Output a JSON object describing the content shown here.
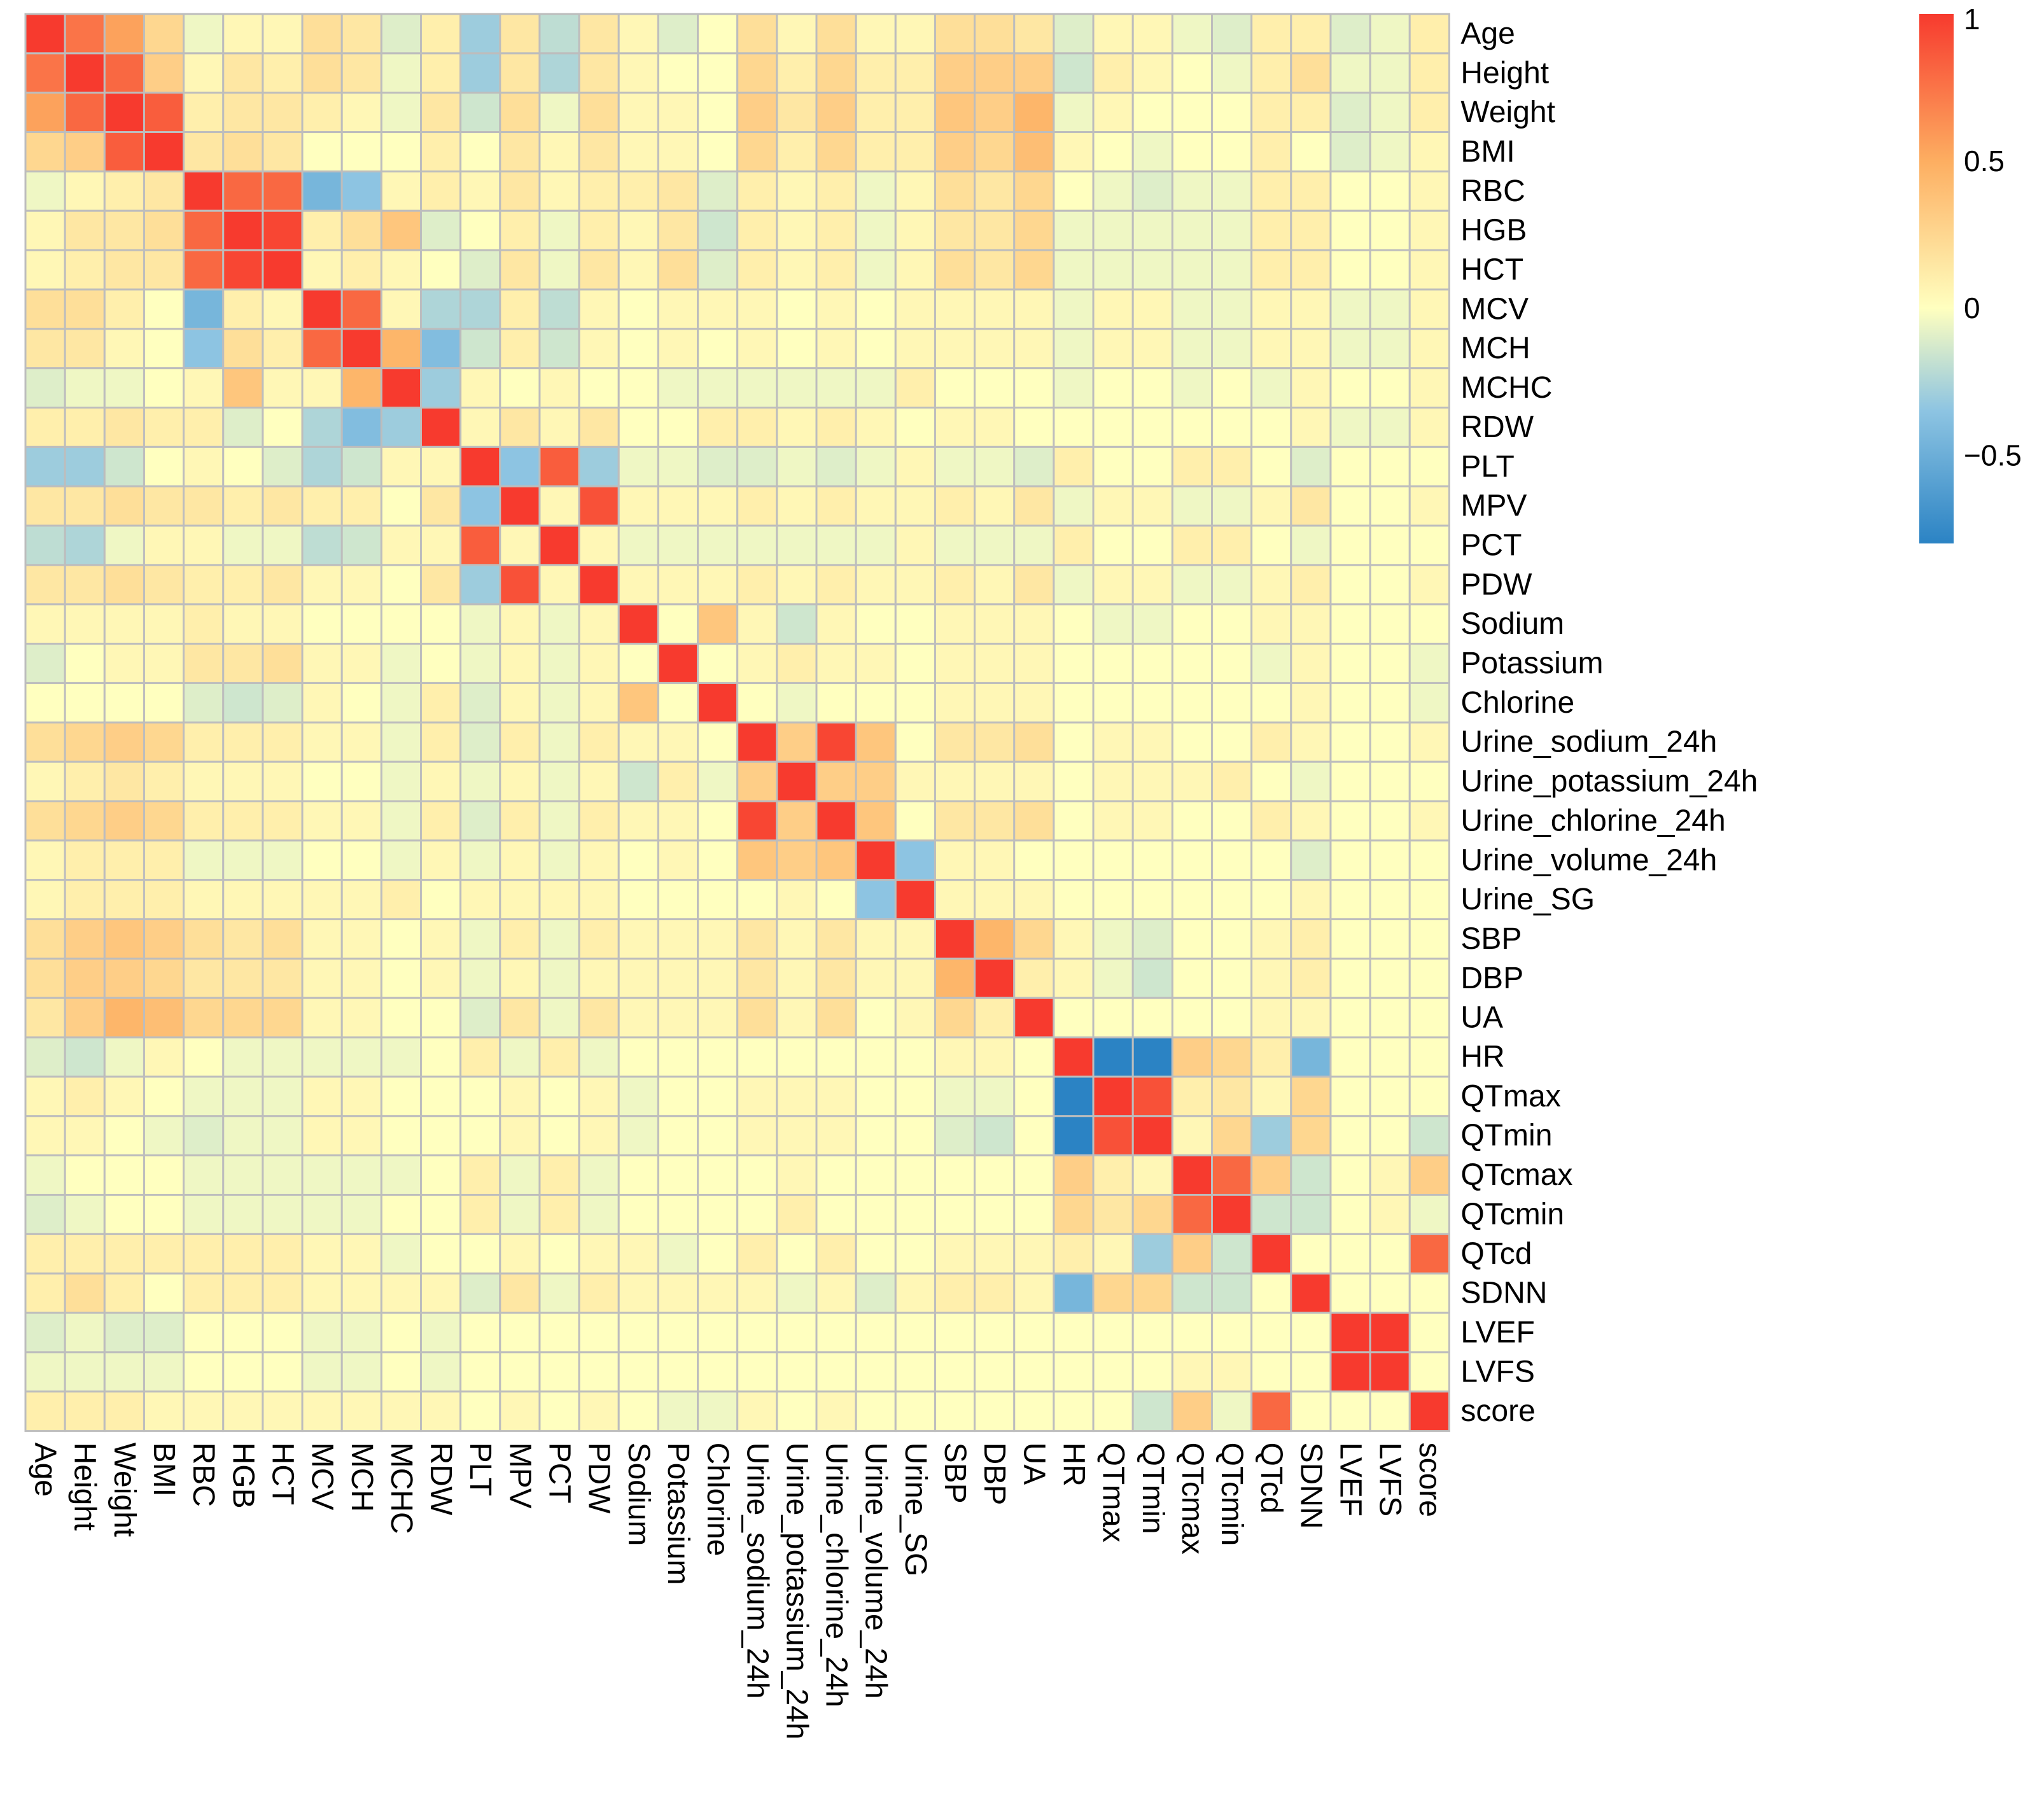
{
  "chart_data": {
    "type": "heatmap",
    "title": "",
    "variables": [
      "Age",
      "Height",
      "Weight",
      "BMI",
      "RBC",
      "HGB",
      "HCT",
      "MCV",
      "MCH",
      "MCHC",
      "RDW",
      "PLT",
      "MPV",
      "PCT",
      "PDW",
      "Sodium",
      "Potassium",
      "Chlorine",
      "Urine_sodium_24h",
      "Urine_potassium_24h",
      "Urine_chlorine_24h",
      "Urine_volume_24h",
      "Urine_SG",
      "SBP",
      "DBP",
      "UA",
      "HR",
      "QTmax",
      "QTmin",
      "QTcmax",
      "QTcmin",
      "QTcd",
      "SDNN",
      "LVEF",
      "LVFS",
      "score"
    ],
    "matrix": [
      [
        1,
        0.75,
        0.55,
        0.25,
        -0.05,
        0.05,
        0.05,
        0.2,
        0.15,
        -0.1,
        0.1,
        -0.3,
        0.15,
        -0.2,
        0.15,
        0.05,
        -0.1,
        0,
        0.2,
        0.05,
        0.2,
        0.05,
        0.05,
        0.2,
        0.2,
        0.15,
        -0.1,
        0.05,
        0.05,
        -0.05,
        -0.1,
        0.1,
        0.1,
        -0.1,
        -0.05,
        0.1
      ],
      [
        0.75,
        1,
        0.8,
        0.3,
        0.05,
        0.15,
        0.1,
        0.2,
        0.15,
        -0.05,
        0.1,
        -0.3,
        0.15,
        -0.25,
        0.15,
        0.05,
        0,
        0,
        0.25,
        0.1,
        0.25,
        0.1,
        0.1,
        0.3,
        0.3,
        0.3,
        -0.15,
        0.1,
        0.05,
        0,
        -0.05,
        0.1,
        0.2,
        -0.05,
        -0.05,
        0.1
      ],
      [
        0.55,
        0.8,
        1,
        0.85,
        0.1,
        0.15,
        0.15,
        0.1,
        0.05,
        -0.05,
        0.15,
        -0.15,
        0.2,
        -0.05,
        0.2,
        0.05,
        0.05,
        0,
        0.3,
        0.15,
        0.3,
        0.1,
        0.1,
        0.35,
        0.3,
        0.45,
        -0.05,
        0.05,
        0,
        0,
        0,
        0.1,
        0.1,
        -0.1,
        -0.05,
        0.1
      ],
      [
        0.25,
        0.3,
        0.85,
        1,
        0.15,
        0.2,
        0.15,
        0,
        0,
        0,
        0.1,
        0,
        0.15,
        0.05,
        0.15,
        0.05,
        0.05,
        0,
        0.25,
        0.1,
        0.25,
        0.1,
        0.1,
        0.3,
        0.25,
        0.4,
        0.05,
        0,
        -0.05,
        0,
        0,
        0.1,
        0,
        -0.1,
        -0.05,
        0.05
      ],
      [
        -0.05,
        0.05,
        0.1,
        0.15,
        1,
        0.8,
        0.8,
        -0.45,
        -0.35,
        0.05,
        0.1,
        0.05,
        0.15,
        0.05,
        0.1,
        0.1,
        0.15,
        -0.1,
        0.1,
        0.05,
        0.1,
        -0.05,
        0.05,
        0.2,
        0.15,
        0.25,
        0,
        -0.05,
        -0.1,
        -0.05,
        -0.05,
        0.1,
        0.1,
        0,
        0,
        0.05
      ],
      [
        0.05,
        0.15,
        0.15,
        0.2,
        0.8,
        1,
        0.95,
        0.1,
        0.2,
        0.35,
        -0.1,
        0,
        0.1,
        -0.05,
        0.1,
        0.05,
        0.15,
        -0.15,
        0.1,
        0.05,
        0.1,
        -0.05,
        0.05,
        0.15,
        0.15,
        0.25,
        -0.05,
        -0.05,
        -0.05,
        -0.05,
        -0.05,
        0.1,
        0.1,
        0,
        0,
        0.05
      ],
      [
        0.05,
        0.1,
        0.15,
        0.15,
        0.8,
        0.95,
        1,
        0.05,
        0.1,
        0.05,
        0,
        -0.1,
        0.15,
        -0.05,
        0.15,
        0.05,
        0.2,
        -0.1,
        0.1,
        0.05,
        0.1,
        -0.05,
        0.05,
        0.2,
        0.15,
        0.25,
        -0.05,
        -0.05,
        -0.05,
        -0.05,
        -0.05,
        0.1,
        0.1,
        0,
        0,
        0.05
      ],
      [
        0.2,
        0.2,
        0.1,
        0,
        -0.45,
        0.1,
        0.05,
        1,
        0.8,
        0.05,
        -0.25,
        -0.25,
        0.1,
        -0.2,
        0.05,
        0,
        0.05,
        0.05,
        0.05,
        0,
        0.05,
        0,
        0.05,
        0.05,
        0.05,
        0.05,
        -0.05,
        0.05,
        0.05,
        -0.05,
        -0.05,
        0.05,
        0.05,
        -0.05,
        -0.05,
        0.05
      ],
      [
        0.15,
        0.15,
        0.05,
        0,
        -0.35,
        0.2,
        0.1,
        0.8,
        1,
        0.45,
        -0.4,
        -0.15,
        0.1,
        -0.15,
        0.05,
        0,
        0.05,
        0,
        0.05,
        0,
        0.05,
        0,
        0.05,
        0.05,
        0.05,
        0.05,
        -0.05,
        0.05,
        0.05,
        -0.05,
        -0.05,
        0.05,
        0.05,
        -0.05,
        -0.05,
        0.05
      ],
      [
        -0.1,
        -0.05,
        -0.05,
        0,
        0.05,
        0.35,
        0.05,
        0.05,
        0.45,
        1,
        -0.3,
        0.05,
        0,
        0.05,
        0,
        0,
        -0.05,
        -0.05,
        -0.05,
        -0.05,
        -0.05,
        -0.05,
        0.1,
        0,
        0,
        0,
        -0.05,
        0,
        0,
        -0.05,
        0,
        -0.05,
        0.05,
        0,
        0,
        0.05
      ],
      [
        0.1,
        0.1,
        0.15,
        0.1,
        0.1,
        -0.1,
        0,
        -0.25,
        -0.4,
        -0.3,
        1,
        0.05,
        0.15,
        0.05,
        0.15,
        0,
        0,
        0.1,
        0.1,
        0.05,
        0.1,
        0.05,
        0,
        0.05,
        0.05,
        0,
        0,
        0,
        0,
        0,
        0,
        0,
        0.05,
        -0.05,
        -0.05,
        0.05
      ],
      [
        -0.3,
        -0.3,
        -0.15,
        0,
        0.05,
        0,
        -0.1,
        -0.25,
        -0.15,
        0.05,
        0.05,
        1,
        -0.35,
        0.85,
        -0.3,
        -0.05,
        -0.05,
        -0.1,
        -0.1,
        -0.05,
        -0.1,
        -0.05,
        0.05,
        -0.05,
        -0.05,
        -0.1,
        0.1,
        0,
        0,
        0.1,
        0.1,
        0,
        -0.1,
        0,
        0,
        0
      ],
      [
        0.15,
        0.15,
        0.2,
        0.15,
        0.15,
        0.1,
        0.15,
        0.1,
        0.1,
        0,
        0.15,
        -0.35,
        1,
        0.05,
        0.9,
        0.05,
        0.05,
        0.05,
        0.1,
        0.05,
        0.1,
        0.05,
        0.05,
        0.1,
        0.05,
        0.15,
        -0.05,
        0.05,
        0.05,
        -0.05,
        -0.05,
        0.05,
        0.15,
        0,
        0,
        0.05
      ],
      [
        -0.2,
        -0.25,
        -0.05,
        0.05,
        0.05,
        -0.05,
        -0.05,
        -0.2,
        -0.15,
        0.05,
        0.05,
        0.85,
        0.05,
        1,
        0.05,
        -0.05,
        -0.05,
        -0.05,
        -0.05,
        -0.05,
        -0.05,
        -0.05,
        0.05,
        -0.05,
        -0.05,
        -0.05,
        0.1,
        0,
        0,
        0.1,
        0.1,
        0,
        -0.05,
        0,
        0,
        0
      ],
      [
        0.15,
        0.15,
        0.2,
        0.15,
        0.1,
        0.1,
        0.15,
        0.05,
        0.05,
        0,
        0.15,
        -0.3,
        0.9,
        0.05,
        1,
        0.05,
        0.05,
        0.05,
        0.1,
        0.05,
        0.1,
        0.05,
        0.05,
        0.1,
        0.05,
        0.15,
        -0.05,
        0.05,
        0.05,
        -0.05,
        -0.05,
        0.05,
        0.1,
        0,
        0,
        0.05
      ],
      [
        0.05,
        0.05,
        0.05,
        0.05,
        0.1,
        0.05,
        0.05,
        0,
        0,
        0,
        0,
        -0.05,
        0.05,
        -0.05,
        0.05,
        1,
        0,
        0.35,
        0.05,
        -0.15,
        0.05,
        0,
        0,
        0.05,
        0.05,
        0.05,
        0,
        -0.05,
        -0.05,
        0,
        0,
        0.05,
        0.05,
        0,
        0,
        0
      ],
      [
        -0.1,
        0,
        0.05,
        0.05,
        0.15,
        0.15,
        0.2,
        0.05,
        0.05,
        -0.05,
        0,
        -0.05,
        0.05,
        -0.05,
        0.05,
        0,
        1,
        0,
        0.05,
        0.1,
        0.05,
        0.05,
        0,
        0.05,
        0.05,
        0.05,
        0,
        0,
        0,
        0,
        0,
        -0.05,
        0.05,
        0,
        0,
        -0.05
      ],
      [
        0,
        0,
        0,
        0,
        -0.1,
        -0.15,
        -0.1,
        0.05,
        0,
        -0.05,
        0.1,
        -0.1,
        0.05,
        -0.05,
        0.05,
        0.35,
        0,
        1,
        0,
        -0.05,
        0,
        0,
        0,
        0.05,
        0.05,
        0.05,
        0,
        0,
        0,
        0,
        0,
        0,
        0.05,
        0,
        0,
        -0.05
      ],
      [
        0.2,
        0.25,
        0.3,
        0.25,
        0.1,
        0.1,
        0.1,
        0.05,
        0.05,
        -0.05,
        0.1,
        -0.1,
        0.1,
        -0.05,
        0.1,
        0.05,
        0.05,
        0,
        1,
        0.3,
        0.95,
        0.35,
        0,
        0.15,
        0.15,
        0.2,
        0,
        0.05,
        0.05,
        0,
        0,
        0.1,
        0.05,
        0,
        0,
        0.05
      ],
      [
        0.05,
        0.1,
        0.15,
        0.1,
        0.05,
        0.05,
        0.05,
        0,
        0,
        -0.05,
        0.05,
        -0.05,
        0.05,
        -0.05,
        0.05,
        -0.15,
        0.1,
        -0.05,
        0.3,
        1,
        0.3,
        0.3,
        0.05,
        0.05,
        0.05,
        0.05,
        0,
        0.05,
        0.05,
        0.05,
        0.1,
        0,
        -0.05,
        0,
        0,
        0
      ],
      [
        0.2,
        0.25,
        0.3,
        0.25,
        0.1,
        0.1,
        0.1,
        0.05,
        0.05,
        -0.05,
        0.1,
        -0.1,
        0.1,
        -0.05,
        0.1,
        0.05,
        0.05,
        0,
        0.95,
        0.3,
        1,
        0.35,
        0,
        0.15,
        0.15,
        0.2,
        0,
        0.05,
        0.05,
        0,
        0,
        0.1,
        0.05,
        0,
        0,
        0.05
      ],
      [
        0.05,
        0.1,
        0.1,
        0.1,
        -0.05,
        -0.05,
        -0.05,
        0,
        0,
        -0.05,
        0.05,
        -0.05,
        0.05,
        -0.05,
        0.05,
        0,
        0.05,
        0,
        0.35,
        0.3,
        0.35,
        1,
        -0.35,
        0.05,
        0.05,
        0,
        0,
        0,
        0,
        0,
        0,
        0,
        -0.1,
        0,
        0,
        0
      ],
      [
        0.05,
        0.1,
        0.1,
        0.1,
        0.05,
        0.05,
        0.05,
        0.05,
        0.05,
        0.1,
        0,
        0.05,
        0.05,
        0.05,
        0.05,
        0,
        0,
        0,
        0,
        0.05,
        0,
        -0.35,
        1,
        0.05,
        0.05,
        0.05,
        0,
        0,
        0,
        0,
        0,
        0,
        0.05,
        0,
        0,
        0
      ],
      [
        0.2,
        0.3,
        0.35,
        0.3,
        0.2,
        0.15,
        0.2,
        0.05,
        0.05,
        0,
        0.05,
        -0.05,
        0.1,
        -0.05,
        0.1,
        0.05,
        0.05,
        0.05,
        0.15,
        0.05,
        0.15,
        0.05,
        0.05,
        1,
        0.45,
        0.25,
        0.05,
        -0.05,
        -0.1,
        0,
        0,
        0.05,
        0.1,
        0,
        0,
        0
      ],
      [
        0.2,
        0.3,
        0.3,
        0.25,
        0.15,
        0.15,
        0.15,
        0.05,
        0.05,
        0,
        0.05,
        -0.05,
        0.05,
        -0.05,
        0.05,
        0.05,
        0.05,
        0.05,
        0.15,
        0.05,
        0.15,
        0.05,
        0.05,
        0.45,
        1,
        0.1,
        0.05,
        -0.05,
        -0.15,
        0,
        0,
        0.05,
        0.1,
        0,
        0,
        0
      ],
      [
        0.15,
        0.3,
        0.45,
        0.4,
        0.25,
        0.25,
        0.25,
        0.05,
        0.05,
        0,
        0,
        -0.1,
        0.15,
        -0.05,
        0.15,
        0.05,
        0.05,
        0.05,
        0.2,
        0.05,
        0.2,
        0,
        0.05,
        0.25,
        0.1,
        1,
        0,
        0,
        0,
        0,
        0,
        0.05,
        0.05,
        0,
        0,
        0
      ],
      [
        -0.1,
        -0.15,
        -0.05,
        0.05,
        0,
        -0.05,
        -0.05,
        -0.05,
        -0.05,
        -0.05,
        0,
        0.1,
        -0.05,
        0.1,
        -0.05,
        0,
        0,
        0,
        0,
        0,
        0,
        0,
        0,
        0.05,
        0.05,
        0,
        1,
        -0.85,
        -0.85,
        0.3,
        0.25,
        0.1,
        -0.45,
        0,
        0,
        0
      ],
      [
        0.05,
        0.1,
        0.05,
        0,
        -0.05,
        -0.05,
        -0.05,
        0.05,
        0.05,
        0,
        0,
        0,
        0.05,
        0,
        0.05,
        -0.05,
        0,
        0,
        0.05,
        0.05,
        0.05,
        0,
        0,
        -0.05,
        -0.05,
        0,
        -0.85,
        1,
        0.9,
        0.1,
        0.15,
        0.05,
        0.25,
        0,
        0,
        0
      ],
      [
        0.05,
        0.05,
        0,
        -0.05,
        -0.1,
        -0.05,
        -0.05,
        0.05,
        0.05,
        0,
        0,
        0,
        0.05,
        0,
        0.05,
        -0.05,
        0,
        0,
        0.05,
        0.05,
        0.05,
        0,
        0,
        -0.1,
        -0.15,
        0,
        -0.85,
        0.9,
        1,
        0.05,
        0.25,
        -0.3,
        0.25,
        0,
        0,
        -0.15
      ],
      [
        -0.05,
        0,
        0,
        0,
        -0.05,
        -0.05,
        -0.05,
        -0.05,
        -0.05,
        -0.05,
        0,
        0.1,
        -0.05,
        0.1,
        -0.05,
        0,
        0,
        0,
        0,
        0.05,
        0,
        0,
        0,
        0,
        0,
        0,
        0.3,
        0.1,
        0.05,
        1,
        0.8,
        0.3,
        -0.15,
        0,
        0.05,
        0.3
      ],
      [
        -0.1,
        -0.05,
        0,
        0,
        -0.05,
        -0.05,
        -0.05,
        -0.05,
        -0.05,
        0,
        0,
        0.1,
        -0.05,
        0.1,
        -0.05,
        0,
        0,
        0,
        0,
        0.1,
        0,
        0,
        0,
        0,
        0,
        0,
        0.25,
        0.15,
        0.25,
        0.8,
        1,
        -0.15,
        -0.15,
        0,
        0.05,
        -0.05
      ],
      [
        0.1,
        0.1,
        0.1,
        0.1,
        0.1,
        0.1,
        0.1,
        0.05,
        0.05,
        -0.05,
        0,
        0,
        0.05,
        0,
        0.05,
        0.05,
        -0.05,
        0,
        0.1,
        0,
        0.1,
        0,
        0,
        0.05,
        0.05,
        0.05,
        0.1,
        0.05,
        -0.3,
        0.3,
        -0.15,
        1,
        0,
        0,
        0,
        0.8
      ],
      [
        0.1,
        0.2,
        0.1,
        0,
        0.1,
        0.1,
        0.1,
        0.05,
        0.05,
        0.05,
        0.05,
        -0.1,
        0.15,
        -0.05,
        0.1,
        0.05,
        0.05,
        0.05,
        0.05,
        -0.05,
        0.05,
        -0.1,
        0.05,
        0.1,
        0.1,
        0.05,
        -0.45,
        0.25,
        0.25,
        -0.15,
        -0.15,
        0,
        1,
        0,
        0,
        0
      ],
      [
        -0.1,
        -0.05,
        -0.1,
        -0.1,
        0,
        0,
        0,
        -0.05,
        -0.05,
        0,
        -0.05,
        0,
        0,
        0,
        0,
        0,
        0,
        0,
        0,
        0,
        0,
        0,
        0,
        0,
        0,
        0,
        0,
        0,
        0,
        0,
        0,
        0,
        0,
        1,
        1,
        0
      ],
      [
        -0.05,
        -0.05,
        -0.05,
        -0.05,
        0,
        0,
        0,
        -0.05,
        -0.05,
        0,
        -0.05,
        0,
        0,
        0,
        0,
        0,
        0,
        0,
        0,
        0,
        0,
        0,
        0,
        0,
        0,
        0,
        0,
        0,
        0,
        0.05,
        0.05,
        0,
        0,
        1,
        1,
        0
      ],
      [
        0.1,
        0.1,
        0.1,
        0.05,
        0.05,
        0.05,
        0.05,
        0.05,
        0.05,
        0.05,
        0.05,
        0,
        0.05,
        0,
        0.05,
        0,
        -0.05,
        -0.05,
        0.05,
        0,
        0.05,
        0,
        0,
        0,
        0,
        0,
        0,
        0,
        -0.15,
        0.3,
        -0.05,
        0.8,
        0,
        0,
        0,
        1
      ]
    ],
    "color_scale": {
      "limits": [
        -0.8,
        1
      ],
      "stops": [
        {
          "value": -0.8,
          "color": "#2B83C4"
        },
        {
          "value": -0.35,
          "color": "#8DC4E2"
        },
        {
          "value": 0,
          "color": "#FFFFBF"
        },
        {
          "value": 0.5,
          "color": "#FDAE61"
        },
        {
          "value": 1,
          "color": "#F73A2E"
        }
      ]
    },
    "legend": {
      "ticks": [
        1,
        0.5,
        0,
        -0.5
      ],
      "tick_labels": [
        "1",
        "0.5",
        "0",
        "−0.5"
      ],
      "position": "top-right"
    },
    "grid_color": "#BDBDBD"
  }
}
